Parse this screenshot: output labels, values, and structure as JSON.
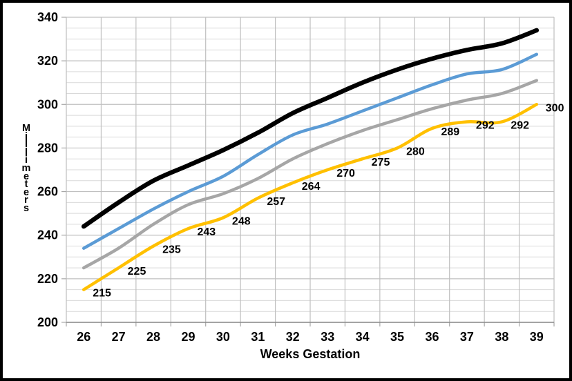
{
  "chart_data": {
    "type": "line",
    "title": "",
    "xlabel": "Weeks Gestation",
    "ylabel": "Millimeters",
    "weeks": [
      26,
      27,
      28,
      29,
      30,
      31,
      32,
      33,
      34,
      35,
      36,
      37,
      38,
      39
    ],
    "x_tick_labels": [
      "26",
      "27",
      "28",
      "29",
      "30",
      "31",
      "32",
      "33",
      "34",
      "35",
      "36",
      "37",
      "38",
      "39"
    ],
    "ylim": [
      200,
      340
    ],
    "y_major_ticks": [
      340,
      320,
      300,
      280,
      260,
      240,
      220,
      200
    ],
    "y_minor_step": 5,
    "grid": "horizontal major+minor, vertical weekly",
    "legend_position": "none",
    "series": [
      {
        "name": "upper-black-curve",
        "color": "#000000",
        "stroke_width": 6.5,
        "data_labels": false,
        "values": [
          244,
          255,
          265,
          272,
          279,
          287,
          296,
          303,
          310,
          316,
          321,
          325,
          328,
          334
        ]
      },
      {
        "name": "blue-curve",
        "color": "#5B9BD5",
        "stroke_width": 4.5,
        "data_labels": false,
        "values": [
          234,
          243,
          252,
          260,
          267,
          277,
          286,
          291,
          297,
          303,
          309,
          314,
          316,
          323
        ]
      },
      {
        "name": "gray-curve",
        "color": "#A6A6A6",
        "stroke_width": 4.5,
        "data_labels": false,
        "values": [
          225,
          234,
          245,
          254,
          259,
          266,
          275,
          282,
          288,
          293,
          298,
          302,
          305,
          311
        ]
      },
      {
        "name": "yellow-labeled-curve",
        "color": "#FFC000",
        "stroke_width": 4.5,
        "data_labels": true,
        "values": [
          215,
          225,
          235,
          243,
          248,
          257,
          264,
          270,
          275,
          280,
          289,
          292,
          292,
          300
        ]
      }
    ],
    "data_label_values": [
      "215",
      "225",
      "235",
      "243",
      "248",
      "257",
      "264",
      "270",
      "275",
      "280",
      "289",
      "292",
      "292",
      "300"
    ]
  },
  "style": {
    "background": "#FFFFFF",
    "frame_color": "#000000",
    "minor_grid_color": "#D9D9D9",
    "major_grid_color": "#BFBFBF",
    "axis_line_color": "#8C8C8C",
    "tick_mark_color": "#A6A6A6",
    "text_color": "#000000"
  }
}
